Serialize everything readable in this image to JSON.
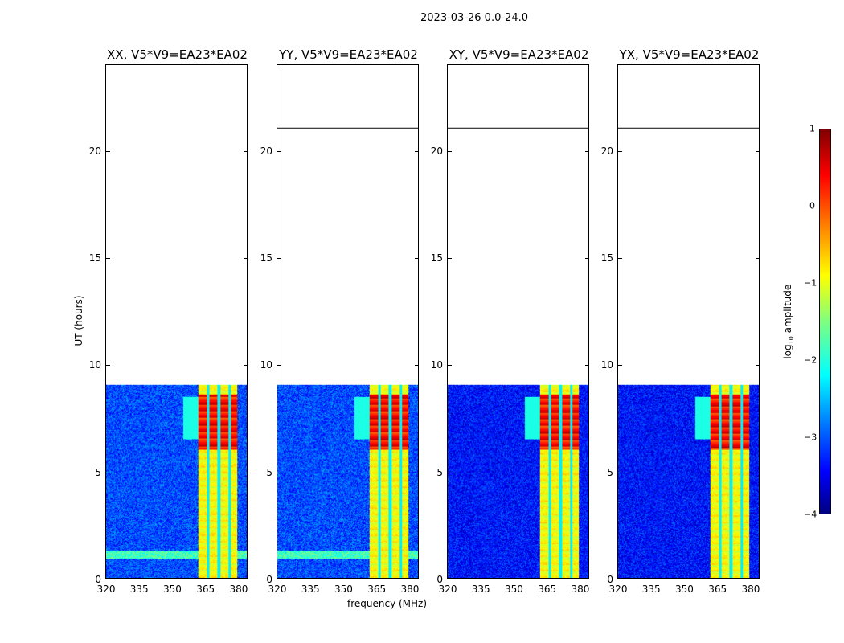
{
  "title": "2023-03-26 0.0-24.0",
  "chart_data": {
    "type": "heatmap",
    "title": "2023-03-26 0.0-24.0",
    "xlabel": "frequency (MHz)",
    "ylabel": "UT (hours)",
    "xlim": [
      320,
      384.4
    ],
    "ylim": [
      0,
      24
    ],
    "xticks": [
      "320",
      "335",
      "350",
      "365",
      "380"
    ],
    "xtick_values": [
      320,
      335,
      350,
      365,
      380
    ],
    "yticks": [
      "0",
      "5",
      "10",
      "15",
      "20"
    ],
    "ytick_values": [
      0,
      5,
      10,
      15,
      20
    ],
    "panels": [
      {
        "title": "XX, V5*V9=EA23*EA02",
        "pol": "XX"
      },
      {
        "title": "YY, V5*V9=EA23*EA02",
        "pol": "YY"
      },
      {
        "title": "XY, V5*V9=EA23*EA02",
        "pol": "XY"
      },
      {
        "title": "YX, V5*V9=EA23*EA02",
        "pol": "YX"
      }
    ],
    "data_time_ranges_hours": [
      [
        0,
        9.05
      ],
      [
        21.05,
        24
      ]
    ],
    "rfi_band_mhz": [
      362,
      380
    ],
    "colorbar": {
      "label": "log10 amplitude",
      "label_main": "log",
      "label_sub": "10",
      "label_rest": " amplitude",
      "clim": [
        -4,
        1
      ],
      "ticks": [
        "1",
        "0",
        "−1",
        "−2",
        "−3",
        "−4"
      ],
      "tick_values": [
        1,
        0,
        -1,
        -2,
        -3,
        -4
      ],
      "colormap": "jet"
    }
  }
}
